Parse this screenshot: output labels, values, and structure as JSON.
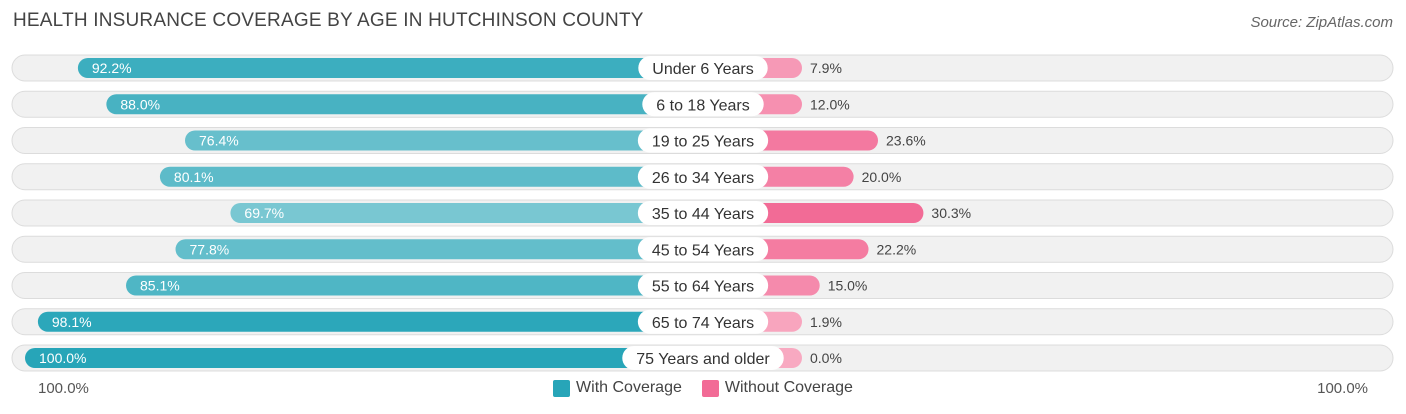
{
  "title": "HEALTH INSURANCE COVERAGE BY AGE IN HUTCHINSON COUNTY",
  "source": "Source: ZipAtlas.com",
  "axis": {
    "left_label": "100.0%",
    "right_label": "100.0%"
  },
  "legend": {
    "with_label": "With Coverage",
    "without_label": "Without Coverage"
  },
  "colors": {
    "with_dark": "#27a5b8",
    "with_light": "#86ccd6",
    "without_dark": "#f26b96",
    "without_light": "#f8a9c1",
    "row_bg": "#f1f1f1",
    "row_border": "#dcdcdc"
  },
  "chart_data": {
    "type": "bar",
    "orientation": "horizontal-diverging",
    "title": "HEALTH INSURANCE COVERAGE BY AGE IN HUTCHINSON COUNTY",
    "xlim": [
      -100,
      100
    ],
    "categories": [
      "Under 6 Years",
      "6 to 18 Years",
      "19 to 25 Years",
      "26 to 34 Years",
      "35 to 44 Years",
      "45 to 54 Years",
      "55 to 64 Years",
      "65 to 74 Years",
      "75 Years and older"
    ],
    "series": [
      {
        "name": "With Coverage",
        "values": [
          92.2,
          88.0,
          76.4,
          80.1,
          69.7,
          77.8,
          85.1,
          98.1,
          100.0
        ],
        "labels": [
          "92.2%",
          "88.0%",
          "76.4%",
          "80.1%",
          "69.7%",
          "77.8%",
          "85.1%",
          "98.1%",
          "100.0%"
        ]
      },
      {
        "name": "Without Coverage",
        "values": [
          7.9,
          12.0,
          23.6,
          20.0,
          30.3,
          22.2,
          15.0,
          1.9,
          0.0
        ],
        "labels": [
          "7.9%",
          "12.0%",
          "23.6%",
          "20.0%",
          "30.3%",
          "22.2%",
          "15.0%",
          "1.9%",
          "0.0%"
        ]
      }
    ]
  }
}
